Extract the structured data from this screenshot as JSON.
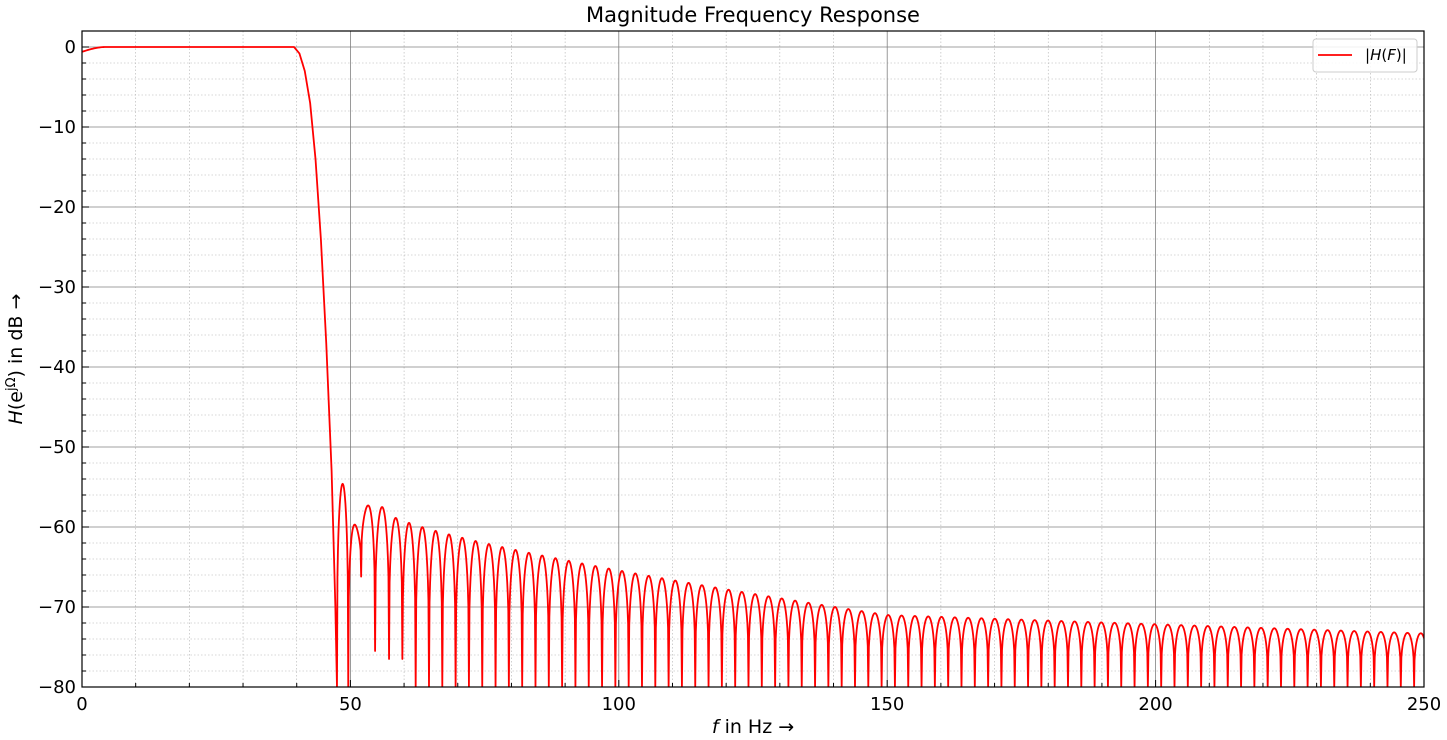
{
  "chart_data": {
    "type": "line",
    "title": "Magnitude Frequency Response",
    "xlabel_parts": {
      "var": "f",
      "rest": " in Hz →"
    },
    "ylabel_parts": {
      "var": "H",
      "open": "(e",
      "sup": "jΩ",
      "rest": ") in dB →"
    },
    "xlim": [
      0,
      250
    ],
    "ylim": [
      -80,
      2
    ],
    "xticks": [
      0,
      50,
      100,
      150,
      200,
      250
    ],
    "xtick_labels": [
      "0",
      "50",
      "100",
      "150",
      "200",
      "250"
    ],
    "yticks": [
      0,
      -10,
      -20,
      -30,
      -40,
      -50,
      -60,
      -70,
      -80
    ],
    "ytick_labels": [
      "0",
      "−10",
      "−20",
      "−30",
      "−40",
      "−50",
      "−60",
      "−70",
      "−80"
    ],
    "grid": {
      "major": true,
      "minor": true
    },
    "legend": {
      "placement": "top-right"
    },
    "series": [
      {
        "name": "|H(F)|",
        "name_parts": {
          "pre": "|",
          "var": "H",
          "mid": "(",
          "var2": "F",
          "post": ")|"
        },
        "color": "#ff0000",
        "passband": {
          "start_db": -0.6,
          "flat_from_hz": 4.5,
          "flat_to_hz": 39.5,
          "level_db": 0
        },
        "transition": [
          [
            39.5,
            0
          ],
          [
            40.5,
            -0.8
          ],
          [
            41.5,
            -3
          ],
          [
            42.5,
            -7
          ],
          [
            43.5,
            -14
          ],
          [
            44.5,
            -24
          ],
          [
            45.5,
            -37
          ],
          [
            46.5,
            -53
          ],
          [
            47.2,
            -70
          ],
          [
            47.5,
            -80
          ]
        ],
        "first_lobes": [
          {
            "f0": 47.5,
            "f1": 49.6,
            "peak_db": -54.6,
            "trough_db": -80
          },
          {
            "f0": 49.6,
            "f1": 52.0,
            "peak_db": -59.7,
            "trough_db": -66.2
          },
          {
            "f0": 52.0,
            "f1": 54.6,
            "peak_db": -57.3,
            "trough_db": -75.5
          },
          {
            "f0": 54.6,
            "f1": 57.2,
            "peak_db": -57.5,
            "trough_db": -76.5
          }
        ],
        "stopband": {
          "lobe_width_hz": 2.48,
          "start_hz": 57.2,
          "end_hz": 250,
          "peak_at_57hz_db": -58.3,
          "peak_at_150hz_db": -71.0,
          "peak_at_250hz_db": -73.3,
          "null_db": -80
        }
      }
    ]
  }
}
